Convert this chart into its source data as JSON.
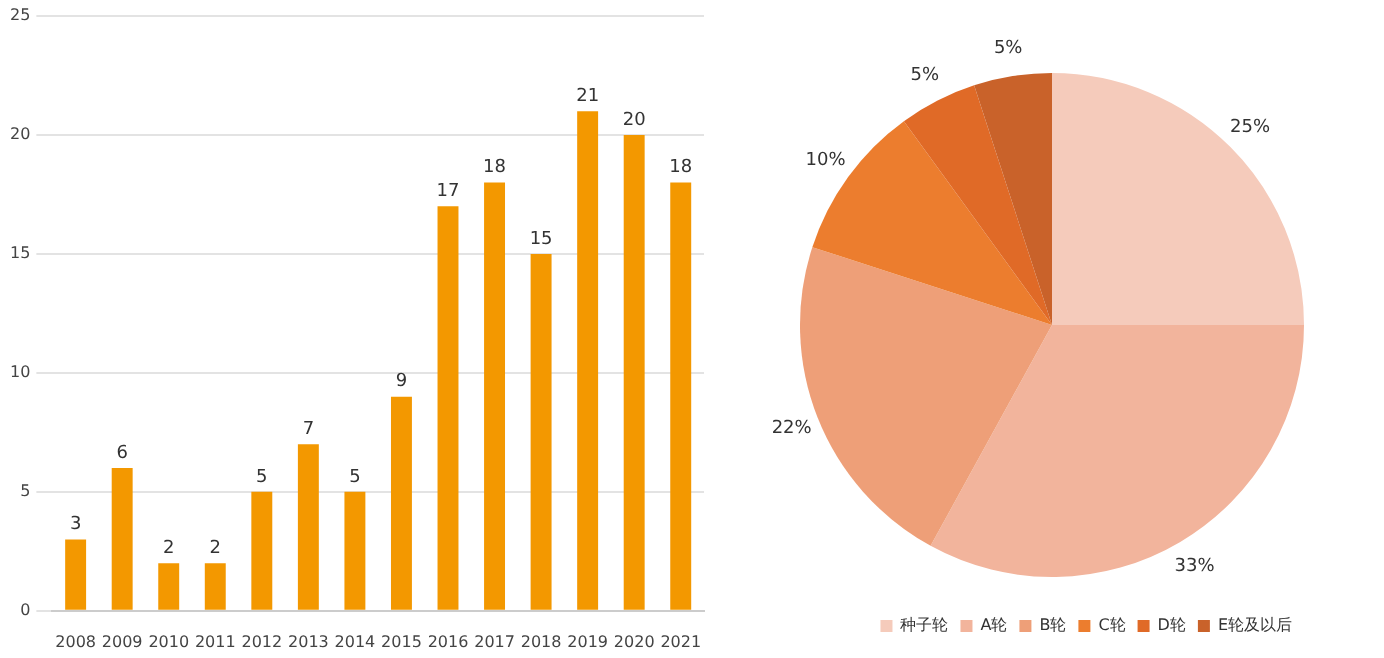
{
  "chart_data": [
    {
      "type": "bar",
      "categories": [
        "2008",
        "2009",
        "2010",
        "2011",
        "2012",
        "2013",
        "2014",
        "2015",
        "2016",
        "2017",
        "2018",
        "2019",
        "2020",
        "2021"
      ],
      "values": [
        3,
        6,
        2,
        2,
        5,
        7,
        5,
        9,
        17,
        18,
        15,
        21,
        20,
        18
      ],
      "color": "#f39800",
      "ylim": [
        0,
        25
      ],
      "yticks": [
        0,
        5,
        10,
        15,
        20,
        25
      ],
      "grid": "y",
      "data_labels": true,
      "legend": false
    },
    {
      "type": "pie",
      "categories": [
        "种子轮",
        "A轮",
        "B轮",
        "C轮",
        "D轮",
        "E轮及以后"
      ],
      "values": [
        25,
        33,
        22,
        10,
        5,
        5
      ],
      "colors": [
        "#f5cbbb",
        "#f2b49c",
        "#ee9f78",
        "#ec7d2e",
        "#e06a27",
        "#c9622a"
      ],
      "value_labels": [
        "25%",
        "33%",
        "22%",
        "10%",
        "5%",
        "5%"
      ],
      "legend": "bottom"
    }
  ]
}
